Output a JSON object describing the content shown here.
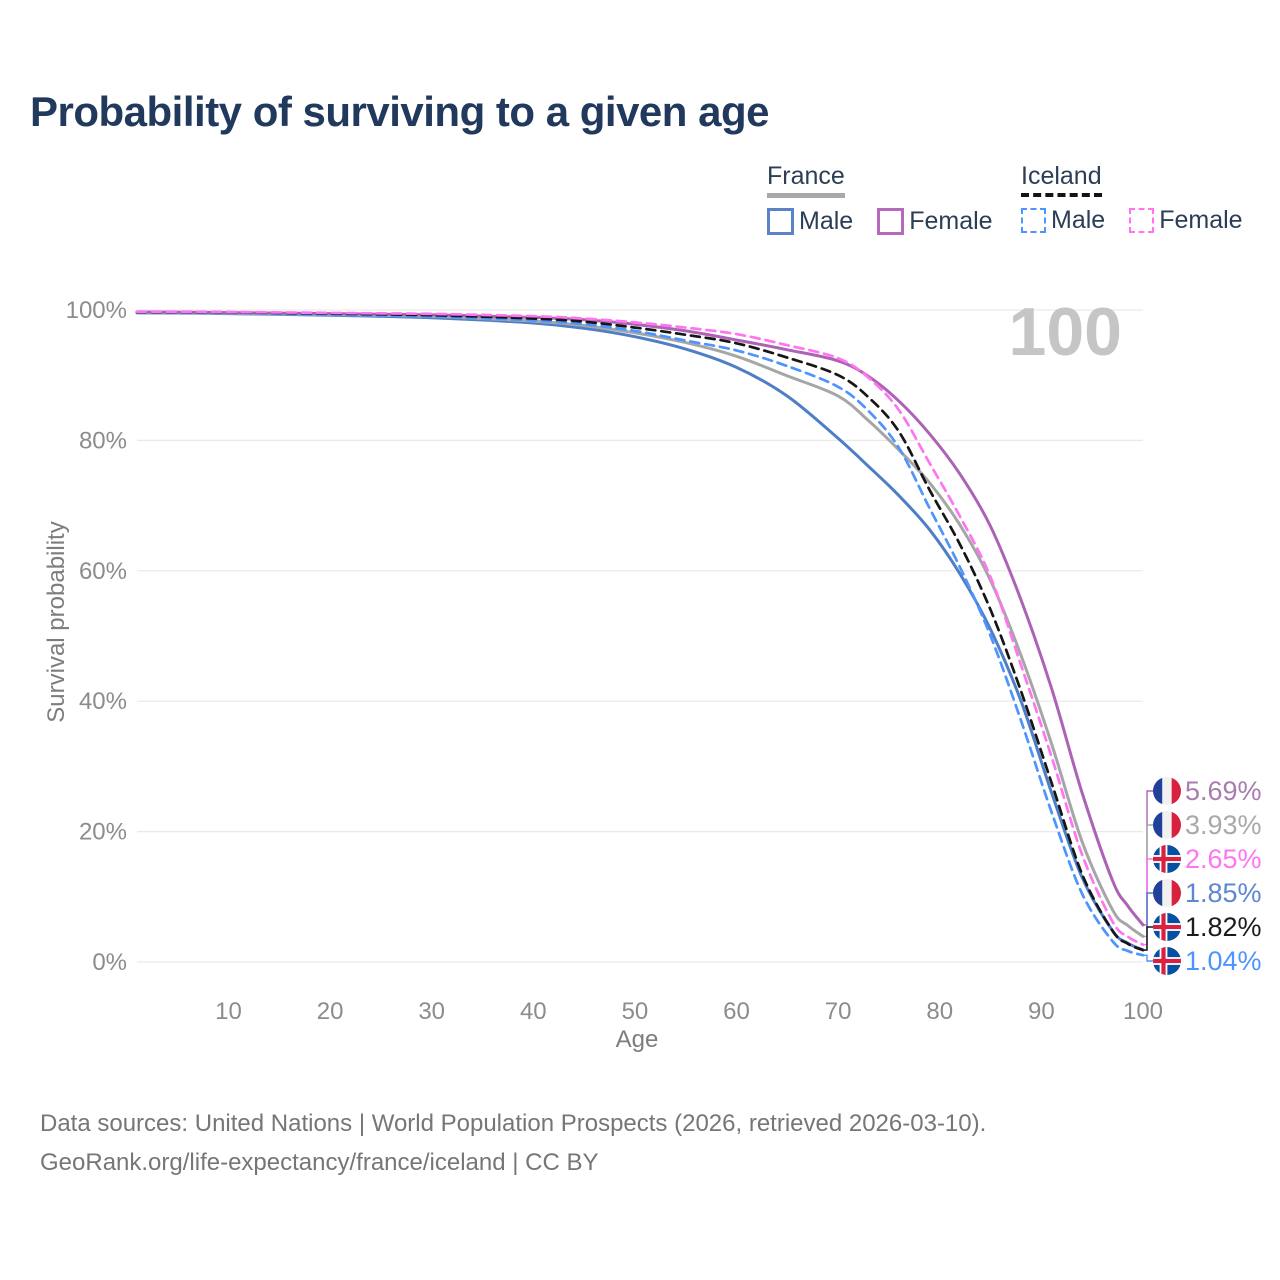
{
  "title": "Probability of surviving to a given age",
  "watermark": "100",
  "legend": {
    "groups": [
      {
        "label": "France",
        "line_style": "solid",
        "underline_color": "#a8a8a8",
        "items": [
          {
            "label": "Male",
            "color": "#5b83c9",
            "dash": false
          },
          {
            "label": "Female",
            "color": "#b668bb",
            "dash": false
          }
        ]
      },
      {
        "label": "Iceland",
        "line_style": "dashed",
        "underline_color": "#141414",
        "items": [
          {
            "label": "Male",
            "color": "#4d94ff",
            "dash": true
          },
          {
            "label": "Female",
            "color": "#ff74f1",
            "dash": true
          }
        ]
      }
    ]
  },
  "chart_data": {
    "type": "line",
    "title": "Probability of surviving to a given age",
    "xlabel": "Age",
    "ylabel": "Survival probability",
    "xlim": [
      1,
      100
    ],
    "ylim": [
      0,
      100
    ],
    "grid": true,
    "x_ticks": [
      10,
      20,
      30,
      40,
      50,
      60,
      70,
      80,
      90,
      100
    ],
    "y_ticks": [
      {
        "value": 0,
        "label": "0%"
      },
      {
        "value": 20,
        "label": "20%"
      },
      {
        "value": 40,
        "label": "40%"
      },
      {
        "value": 60,
        "label": "60%"
      },
      {
        "value": 80,
        "label": "80%"
      },
      {
        "value": 100,
        "label": "100%"
      }
    ],
    "grid_color": "#e9e9e9",
    "tick_color": "#8c8c8c",
    "series": [
      {
        "name": "France Male",
        "flag": "france",
        "color": "#4e7ec6",
        "dash": false,
        "end_label": "1.85%",
        "label_color": "#5d87d1",
        "points": [
          [
            1,
            99.55
          ],
          [
            10,
            99.45
          ],
          [
            20,
            99.2
          ],
          [
            30,
            98.8
          ],
          [
            40,
            98.0
          ],
          [
            45,
            97.2
          ],
          [
            50,
            95.9
          ],
          [
            55,
            94.0
          ],
          [
            60,
            91.2
          ],
          [
            65,
            86.8
          ],
          [
            70,
            80.3
          ],
          [
            73,
            76.0
          ],
          [
            76,
            71.5
          ],
          [
            79,
            66.3
          ],
          [
            82,
            59.5
          ],
          [
            85,
            51.0
          ],
          [
            88,
            40.0
          ],
          [
            91,
            26.0
          ],
          [
            94,
            13.0
          ],
          [
            97,
            4.8
          ],
          [
            98.5,
            2.9
          ],
          [
            100,
            1.85
          ]
        ]
      },
      {
        "name": "France",
        "flag": "france",
        "color": "#a6a6a6",
        "dash": false,
        "end_label": "3.93%",
        "label_color": "#a9a9a9",
        "points": [
          [
            1,
            99.6
          ],
          [
            10,
            99.5
          ],
          [
            20,
            99.3
          ],
          [
            30,
            99.0
          ],
          [
            40,
            98.3
          ],
          [
            45,
            97.6
          ],
          [
            50,
            96.5
          ],
          [
            55,
            95.0
          ],
          [
            60,
            92.9
          ],
          [
            65,
            89.9
          ],
          [
            70,
            86.8
          ],
          [
            73,
            83.0
          ],
          [
            76,
            78.5
          ],
          [
            79,
            73.5
          ],
          [
            82,
            67.0
          ],
          [
            85,
            58.5
          ],
          [
            88,
            47.0
          ],
          [
            91,
            33.5
          ],
          [
            94,
            18.5
          ],
          [
            97,
            8.0
          ],
          [
            98.5,
            5.6
          ],
          [
            100,
            3.93
          ]
        ]
      },
      {
        "name": "France Female",
        "flag": "france",
        "color": "#ad63b5",
        "dash": false,
        "end_label": "5.69%",
        "label_color": "#a97bb0",
        "points": [
          [
            1,
            99.7
          ],
          [
            10,
            99.6
          ],
          [
            20,
            99.45
          ],
          [
            30,
            99.25
          ],
          [
            40,
            98.85
          ],
          [
            45,
            98.5
          ],
          [
            50,
            97.8
          ],
          [
            55,
            96.8
          ],
          [
            60,
            95.4
          ],
          [
            65,
            93.9
          ],
          [
            70,
            92.2
          ],
          [
            73,
            89.8
          ],
          [
            76,
            86.0
          ],
          [
            79,
            81.0
          ],
          [
            82,
            74.8
          ],
          [
            85,
            66.8
          ],
          [
            88,
            55.5
          ],
          [
            91,
            42.0
          ],
          [
            94,
            26.0
          ],
          [
            97,
            12.5
          ],
          [
            98.5,
            8.6
          ],
          [
            100,
            5.69
          ]
        ]
      },
      {
        "name": "Iceland Male",
        "flag": "iceland",
        "color": "#4d94ff",
        "dash": true,
        "end_label": "1.04%",
        "label_color": "#4d94ff",
        "points": [
          [
            1,
            99.65
          ],
          [
            10,
            99.55
          ],
          [
            20,
            99.3
          ],
          [
            30,
            99.0
          ],
          [
            40,
            98.4
          ],
          [
            45,
            97.8
          ],
          [
            50,
            96.8
          ],
          [
            55,
            95.3
          ],
          [
            60,
            93.8
          ],
          [
            65,
            91.4
          ],
          [
            70,
            88.2
          ],
          [
            73,
            84.5
          ],
          [
            76,
            78.8
          ],
          [
            79,
            69.6
          ],
          [
            82,
            60.5
          ],
          [
            85,
            50.0
          ],
          [
            88,
            37.0
          ],
          [
            91,
            23.0
          ],
          [
            94,
            10.5
          ],
          [
            97,
            3.2
          ],
          [
            98.5,
            1.7
          ],
          [
            100,
            1.04
          ]
        ]
      },
      {
        "name": "Iceland",
        "flag": "iceland",
        "color": "#161616",
        "dash": true,
        "end_label": "1.82%",
        "label_color": "#1c1c1c",
        "points": [
          [
            1,
            99.7
          ],
          [
            10,
            99.65
          ],
          [
            20,
            99.45
          ],
          [
            30,
            99.2
          ],
          [
            40,
            98.7
          ],
          [
            45,
            98.2
          ],
          [
            50,
            97.3
          ],
          [
            55,
            96.2
          ],
          [
            60,
            94.9
          ],
          [
            65,
            92.7
          ],
          [
            70,
            90.0
          ],
          [
            73,
            86.6
          ],
          [
            76,
            81.3
          ],
          [
            79,
            72.4
          ],
          [
            82,
            64.0
          ],
          [
            85,
            54.0
          ],
          [
            88,
            41.5
          ],
          [
            91,
            27.5
          ],
          [
            94,
            13.5
          ],
          [
            97,
            4.8
          ],
          [
            98.5,
            2.8
          ],
          [
            100,
            1.82
          ]
        ]
      },
      {
        "name": "Iceland Female",
        "flag": "iceland",
        "color": "#ff74f1",
        "dash": true,
        "end_label": "2.65%",
        "label_color": "#ff74f1",
        "points": [
          [
            1,
            99.75
          ],
          [
            10,
            99.7
          ],
          [
            20,
            99.55
          ],
          [
            30,
            99.4
          ],
          [
            40,
            99.05
          ],
          [
            45,
            98.7
          ],
          [
            50,
            98.1
          ],
          [
            55,
            97.3
          ],
          [
            60,
            96.3
          ],
          [
            65,
            94.6
          ],
          [
            70,
            92.6
          ],
          [
            73,
            89.6
          ],
          [
            76,
            84.6
          ],
          [
            79,
            76.5
          ],
          [
            82,
            68.3
          ],
          [
            85,
            59.0
          ],
          [
            88,
            45.5
          ],
          [
            91,
            31.5
          ],
          [
            94,
            16.5
          ],
          [
            97,
            6.2
          ],
          [
            98.5,
            3.9
          ],
          [
            100,
            2.65
          ]
        ]
      }
    ],
    "flag_colors": {
      "france": {
        "blue": "#21409a",
        "white": "#f1f1f1",
        "red": "#d8213f"
      },
      "iceland": {
        "blue": "#0550a0",
        "white": "#ffffff",
        "red": "#d8213f"
      }
    }
  },
  "footer": {
    "line1": "Data sources: United Nations | World Population Prospects (2026, retrieved 2026-03-10).",
    "line2": "GeoRank.org/life-expectancy/france/iceland | CC BY"
  }
}
